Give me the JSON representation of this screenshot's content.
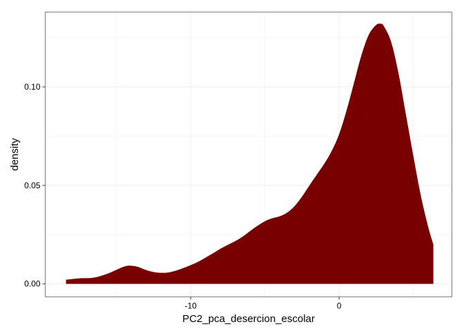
{
  "chart_data": {
    "type": "area",
    "title": "",
    "xlabel": "PC2_pca_desercion_escolar",
    "ylabel": "density",
    "xlim": [
      -19.8,
      7.6
    ],
    "ylim": [
      -0.0066,
      0.138
    ],
    "x_ticks": [
      {
        "value": -10,
        "label": "-10"
      },
      {
        "value": 0,
        "label": "0"
      }
    ],
    "y_ticks": [
      {
        "value": 0.0,
        "label": "0.00"
      },
      {
        "value": 0.05,
        "label": "0.05"
      },
      {
        "value": 0.1,
        "label": "0.10"
      }
    ],
    "grid": true,
    "fill_color": "#780000",
    "panel_border_color": "#7f7f7f",
    "grid_color": "#ebebeb",
    "series": [
      {
        "x": [
          -18.4,
          -17.5,
          -16.5,
          -15.5,
          -14.5,
          -14.0,
          -13.5,
          -13.0,
          -12.5,
          -12.0,
          -11.5,
          -11.0,
          -10.5,
          -10.0,
          -9.5,
          -9.0,
          -8.5,
          -8.0,
          -7.5,
          -7.0,
          -6.5,
          -6.0,
          -5.5,
          -5.0,
          -4.5,
          -4.0,
          -3.5,
          -3.0,
          -2.5,
          -2.0,
          -1.5,
          -1.0,
          -0.5,
          0.0,
          0.5,
          1.0,
          1.5,
          2.0,
          2.5,
          2.8,
          3.0,
          3.5,
          4.0,
          4.5,
          5.0,
          5.5,
          6.0,
          6.35
        ],
        "y": [
          0.0021,
          0.0028,
          0.0032,
          0.0055,
          0.0087,
          0.0092,
          0.0085,
          0.007,
          0.006,
          0.0056,
          0.0058,
          0.0067,
          0.008,
          0.0095,
          0.0112,
          0.0133,
          0.0155,
          0.0178,
          0.0198,
          0.0217,
          0.024,
          0.0268,
          0.0295,
          0.0318,
          0.0333,
          0.0343,
          0.0362,
          0.0395,
          0.0443,
          0.05,
          0.0555,
          0.061,
          0.0675,
          0.076,
          0.088,
          0.102,
          0.116,
          0.1265,
          0.1315,
          0.132,
          0.131,
          0.123,
          0.107,
          0.086,
          0.065,
          0.045,
          0.029,
          0.02
        ]
      }
    ]
  }
}
